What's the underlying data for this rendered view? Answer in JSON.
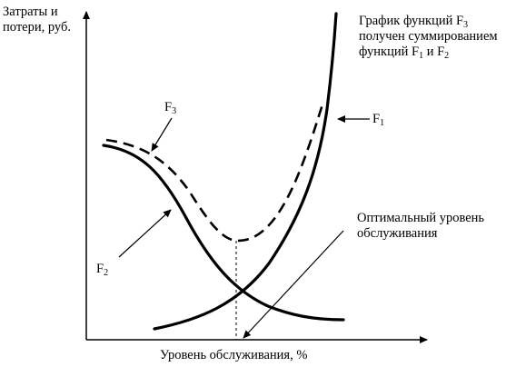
{
  "axes": {
    "y_label_line1": "Затраты и",
    "y_label_line2": "потери, руб.",
    "x_label": "Уровень обслуживания, %"
  },
  "note": {
    "line1_prefix": "График функций F",
    "line1_sub": "3",
    "line2": "получен суммированием",
    "line3_prefix": "функций F",
    "line3_sub1": "1",
    "line3_mid": " и F",
    "line3_sub2": "2"
  },
  "optimal": {
    "line1": "Оптимальный уровень",
    "line2": "обслуживания"
  },
  "curves": {
    "f1": {
      "letter": "F",
      "index": "1"
    },
    "f2": {
      "letter": "F",
      "index": "2"
    },
    "f3": {
      "letter": "F",
      "index": "3"
    }
  },
  "colors": {
    "ink": "#000000",
    "background": "#ffffff"
  }
}
